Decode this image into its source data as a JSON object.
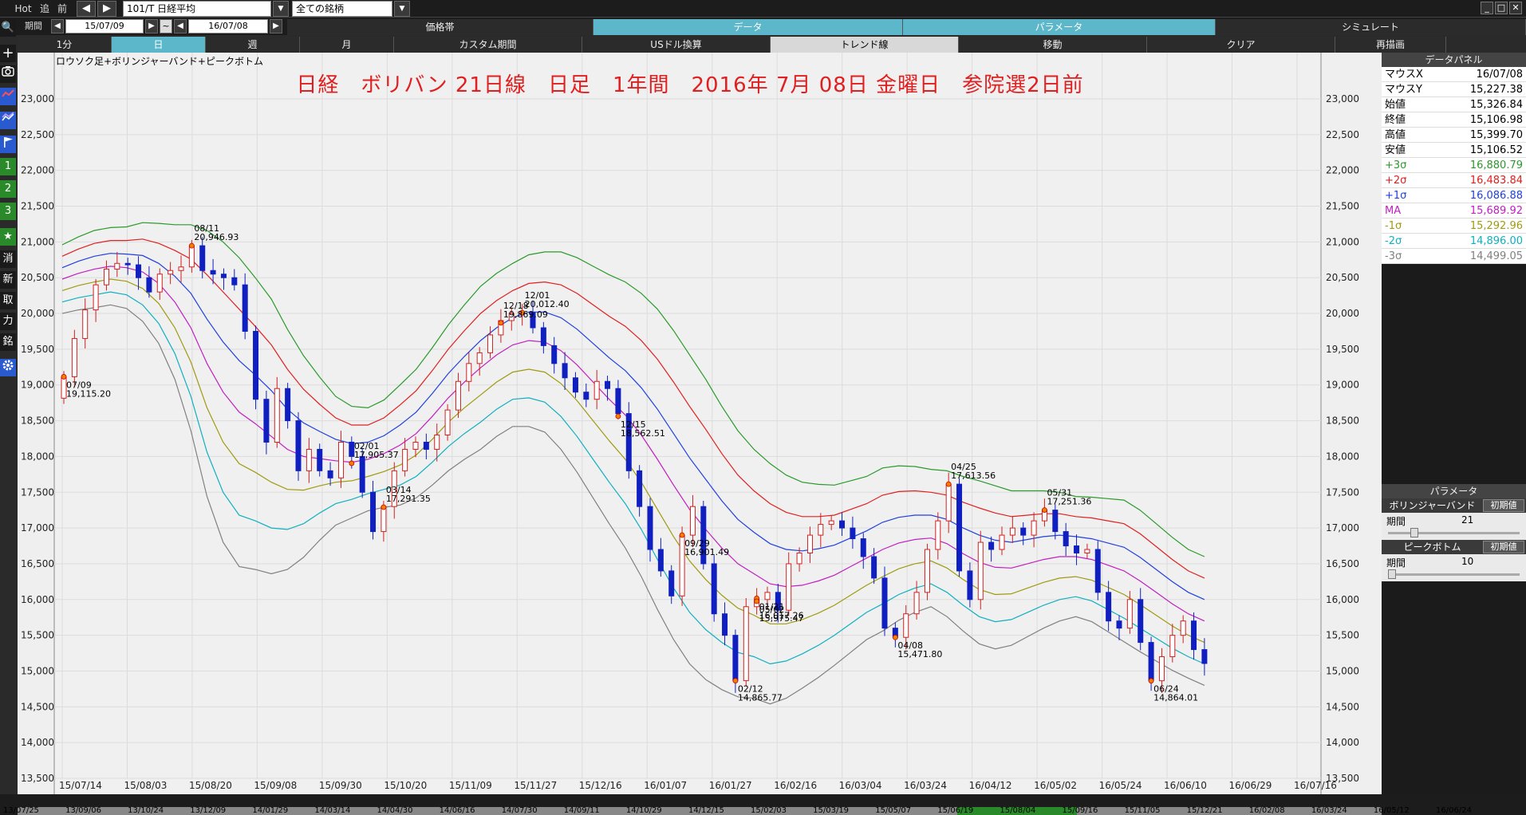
{
  "toolbar": {
    "hot": "Hot",
    "add": "追",
    "prev": "前",
    "back_arrow": "◀",
    "forward_arrow": "▶",
    "symbol": "101/T 日経平均",
    "filter": "全ての銘柄",
    "dropdown_arrow": "▼",
    "win_minimize": "_",
    "win_maximize": "□",
    "win_close": "✕"
  },
  "period": {
    "label": "期間",
    "start": "15/07/09",
    "tilde": "~",
    "end": "16/07/08"
  },
  "top_tabs": [
    "価格帯",
    "データ",
    "パラメータ",
    "シミュレート"
  ],
  "sub_tabs": [
    "1分",
    "日",
    "週",
    "月",
    "カスタム期間",
    "USドル換算",
    "トレンド線",
    "移動",
    "クリア",
    "再描画"
  ],
  "sidebar": {
    "search": "🔍",
    "plus": "+",
    "one": "1",
    "two": "2",
    "three": "3",
    "star": "★",
    "c1": "消",
    "c2": "新",
    "c3": "取",
    "c4": "力",
    "c5": "銘"
  },
  "chart": {
    "label": "ロウソク足+ボリンジャーバンド+ピークボトム",
    "title": "日経　ボリバン 21日線　日足　1年間　2016年 7月 08日 金曜日　参院選2日前"
  },
  "panel": {
    "title": "データパネル",
    "rows": [
      {
        "k": "マウスX",
        "v": "16/07/08",
        "color": "#000000"
      },
      {
        "k": "マウスY",
        "v": "15,227.38",
        "color": "#000000"
      },
      {
        "k": "始値",
        "v": "15,326.84",
        "color": "#000000"
      },
      {
        "k": "終値",
        "v": "15,106.98",
        "color": "#000000"
      },
      {
        "k": "高値",
        "v": "15,399.70",
        "color": "#000000"
      },
      {
        "k": "安値",
        "v": "15,106.52",
        "color": "#000000"
      },
      {
        "k": "+3σ",
        "v": "16,880.79",
        "color": "#2a9a2a"
      },
      {
        "k": "+2σ",
        "v": "16,483.84",
        "color": "#e02020"
      },
      {
        "k": "+1σ",
        "v": "16,086.88",
        "color": "#2040e0"
      },
      {
        "k": "MA",
        "v": "15,689.92",
        "color": "#c020c0"
      },
      {
        "k": "-1σ",
        "v": "15,292.96",
        "color": "#a09a10"
      },
      {
        "k": "-2σ",
        "v": "14,896.00",
        "color": "#10b0c0"
      },
      {
        "k": "-3σ",
        "v": "14,499.05",
        "color": "#808080"
      }
    ]
  },
  "params": {
    "title": "パラメータ",
    "bollinger": "ボリンジャーバンド",
    "bollinger_period_label": "期間",
    "bollinger_period": "21",
    "bollinger_slider": 0.18,
    "peak": "ピークボトム",
    "peak_period_label": "期間",
    "peak_period": "10",
    "peak_slider": 0.0,
    "reset": "初期値"
  },
  "chart_data": {
    "type": "candlestick",
    "y_ticks": [
      "23,000",
      "22,500",
      "22,000",
      "21,500",
      "21,000",
      "20,500",
      "20,000",
      "19,500",
      "19,000",
      "18,500",
      "18,000",
      "17,500",
      "17,000",
      "16,500",
      "16,000",
      "15,500",
      "15,000",
      "14,500",
      "14,000",
      "13,500"
    ],
    "ylim": [
      13500,
      23000
    ],
    "x_ticks": [
      "15/07/14",
      "15/08/03",
      "15/08/20",
      "15/09/08",
      "15/09/30",
      "15/10/20",
      "15/11/09",
      "15/11/27",
      "15/12/16",
      "16/01/07",
      "16/01/27",
      "16/02/16",
      "16/03/04",
      "16/03/24",
      "16/04/12",
      "16/05/02",
      "16/05/24",
      "16/06/10",
      "16/06/29",
      "16/07/16"
    ],
    "bottom_ticks": [
      "13/07/25",
      "13/09/06",
      "13/10/24",
      "13/12/09",
      "14/01/29",
      "14/03/14",
      "14/04/30",
      "14/06/16",
      "14/07/30",
      "14/09/11",
      "14/10/29",
      "14/12/15",
      "15/02/03",
      "15/03/19",
      "15/05/07",
      "15/06/19",
      "15/08/04",
      "15/09/16",
      "15/11/05",
      "15/12/21",
      "16/02/08",
      "16/03/24",
      "16/05/12",
      "16/06/24"
    ],
    "peaks": [
      {
        "date": "07/09",
        "value": "19,115.20",
        "price": 19115,
        "pos": "below"
      },
      {
        "date": "08/11",
        "value": "20,946.93",
        "price": 20947,
        "pos": "above"
      },
      {
        "date": "09/29",
        "value": "16,901.49",
        "price": 16901,
        "pos": "below"
      },
      {
        "date": "12/01",
        "value": "20,012.40",
        "price": 20012,
        "pos": "above"
      },
      {
        "date": "12/18",
        "value": "19,869.09",
        "price": 19869,
        "pos": "above"
      },
      {
        "date": "12/15",
        "value": "18,562.51",
        "price": 18562,
        "pos": "below"
      },
      {
        "date": "01/21",
        "value": "16,017.26",
        "price": 16017,
        "pos": "below"
      },
      {
        "date": "02/01",
        "value": "17,905.37",
        "price": 17905,
        "pos": "above"
      },
      {
        "date": "02/12",
        "value": "14,865.77",
        "price": 14865,
        "pos": "below"
      },
      {
        "date": "03/14",
        "value": "17,291.35",
        "price": 17291,
        "pos": "above"
      },
      {
        "date": "04/08",
        "value": "15,471.80",
        "price": 15471,
        "pos": "below"
      },
      {
        "date": "04/25",
        "value": "17,613.56",
        "price": 17613,
        "pos": "above"
      },
      {
        "date": "05/02",
        "value": "15,975.47",
        "price": 15975,
        "pos": "below"
      },
      {
        "date": "05/31",
        "value": "17,251.36",
        "price": 17251,
        "pos": "above"
      },
      {
        "date": "06/24",
        "value": "14,864.01",
        "price": 14864,
        "pos": "below"
      }
    ],
    "ma": [
      20480,
      20560,
      20620,
      20660,
      20640,
      20580,
      20420,
      20160,
      19800,
      19300,
      18900,
      18620,
      18460,
      18280,
      18100,
      18000,
      17970,
      17940,
      17920,
      17960,
      18040,
      18160,
      18320,
      18560,
      18820,
      19040,
      19240,
      19420,
      19560,
      19620,
      19600,
      19480,
      19280,
      19040,
      18800,
      18580,
      18300,
      17960,
      17600,
      17260,
      16980,
      16720,
      16500,
      16360,
      16220,
      16180,
      16200,
      16260,
      16340,
      16460,
      16580,
      16700,
      16790,
      16840,
      16860,
      16780,
      16640,
      16520,
      16450,
      16440,
      16500,
      16560,
      16600,
      16600,
      16560,
      16480,
      16400,
      16260,
      16100,
      15940,
      15800,
      15700
    ],
    "sigma": [
      160,
      170,
      180,
      180,
      190,
      230,
      280,
      360,
      480,
      620,
      700,
      720,
      680,
      640,
      560,
      470,
      380,
      300,
      260,
      240,
      250,
      280,
      300,
      320,
      340,
      360,
      380,
      380,
      380,
      400,
      420,
      460,
      500,
      540,
      580,
      620,
      660,
      700,
      720,
      720,
      700,
      660,
      620,
      580,
      560,
      520,
      480,
      450,
      420,
      400,
      380,
      380,
      360,
      340,
      320,
      340,
      360,
      380,
      380,
      360,
      340,
      320,
      300,
      280,
      290,
      310,
      330,
      330,
      320,
      310,
      300,
      300
    ],
    "closes": [
      19115,
      19650,
      20050,
      20400,
      20620,
      20700,
      20680,
      20500,
      20300,
      20550,
      20600,
      20650,
      20947,
      20600,
      20550,
      20500,
      20400,
      19750,
      18800,
      18200,
      18950,
      18500,
      17800,
      18100,
      17800,
      17700,
      18200,
      18000,
      17500,
      16950,
      17300,
      17800,
      18100,
      18200,
      18100,
      18300,
      18650,
      19050,
      19300,
      19450,
      19700,
      19900,
      20000,
      20012,
      19800,
      19550,
      19300,
      19100,
      18900,
      18800,
      19050,
      18950,
      18600,
      17800,
      17300,
      16700,
      16400,
      16050,
      16900,
      17300,
      16500,
      15800,
      15500,
      14865,
      15900,
      16000,
      16100,
      15850,
      16500,
      16650,
      16900,
      17050,
      17100,
      17000,
      16850,
      16600,
      16300,
      15600,
      15471,
      15800,
      16100,
      16700,
      17100,
      17613,
      16400,
      16000,
      16800,
      16700,
      16900,
      17000,
      16900,
      17100,
      17251,
      16950,
      16750,
      16650,
      16700,
      16100,
      15700,
      15600,
      16000,
      15400,
      14864,
      15200,
      15500,
      15700,
      15300,
      15106
    ]
  }
}
